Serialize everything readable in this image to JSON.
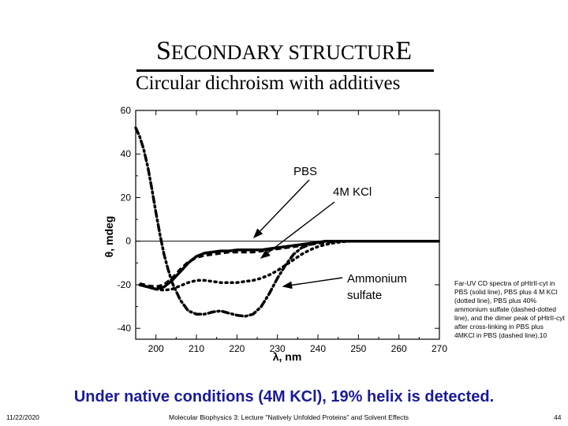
{
  "slide": {
    "title_first": "S",
    "title_middle": "ECONDARY STRUCTUR",
    "title_last": "E",
    "subtitle": "Circular dichroism with additives",
    "caption": "Far-UV CD spectra of pHtrII-cyt in PBS (solid line), PBS plus 4 M KCl (dotted line), PBS plus 40% ammonium sulfate (dashed-dotted line), and the dimer peak of pHtrII-cyt after cross-linking in PBS plus 4MKCl in PBS (dashed line).10",
    "conclusion": "Under native conditions (4M KCl), 19% helix is detected.",
    "footer_date": "11/22/2020",
    "footer_center": "Molecular Biophysics 3: Lecture \"Natively Unfolded Proteins\" and Solvent Effects",
    "footer_page": "44"
  },
  "chart_data": {
    "type": "line",
    "xlabel": "λ, nm",
    "ylabel": "θ, mdeg",
    "xlim": [
      195,
      270
    ],
    "ylim": [
      -45,
      60
    ],
    "xticks": [
      200,
      210,
      220,
      230,
      240,
      250,
      260,
      270
    ],
    "yticks": [
      60,
      40,
      20,
      0,
      -20,
      -40
    ],
    "annotations": [
      {
        "text": "PBS",
        "target_series": "PBS"
      },
      {
        "text": "4M KCl",
        "target_series": "PBS plus 4 M KCl"
      },
      {
        "text": "Ammonium",
        "text2": "sulfate",
        "target_series": "PBS plus 40% ammonium sulfate"
      }
    ],
    "series": [
      {
        "name": "PBS",
        "style": "solid",
        "x": [
          196,
          198,
          200,
          202,
          204,
          206,
          208,
          210,
          212,
          214,
          216,
          218,
          220,
          222,
          224,
          226,
          228,
          230,
          232,
          234,
          236,
          238,
          240,
          242,
          245,
          250,
          260,
          270
        ],
        "y": [
          -20,
          -21,
          -22,
          -21,
          -18,
          -14,
          -10,
          -7,
          -5.5,
          -5,
          -4.5,
          -4.5,
          -4,
          -4,
          -4,
          -4,
          -3.5,
          -3,
          -2.5,
          -2,
          -1.5,
          -1,
          -0.5,
          0,
          0,
          0,
          0,
          0
        ]
      },
      {
        "name": "PBS plus 4 M KCl",
        "style": "dotted",
        "x": [
          196,
          198,
          200,
          202,
          204,
          206,
          208,
          210,
          212,
          214,
          216,
          218,
          220,
          222,
          224,
          226,
          228,
          230,
          232,
          234,
          236,
          238,
          240,
          242,
          244,
          246,
          248,
          250,
          260,
          270
        ],
        "y": [
          -20,
          -21,
          -22,
          -22.5,
          -22,
          -20.5,
          -19,
          -18,
          -18,
          -18.5,
          -19,
          -19,
          -19,
          -18.5,
          -18,
          -17,
          -15.5,
          -13.5,
          -11,
          -8.5,
          -6,
          -4,
          -2.5,
          -1.5,
          -0.8,
          -0.3,
          0,
          0,
          0,
          0
        ]
      },
      {
        "name": "PBS plus 40% ammonium sulfate",
        "style": "dashdot",
        "x": [
          195,
          196,
          197,
          198,
          199,
          200,
          201,
          202,
          203,
          204,
          206,
          208,
          210,
          212,
          214,
          216,
          218,
          220,
          222,
          224,
          226,
          228,
          230,
          232,
          234,
          236,
          238,
          240,
          242,
          245,
          250,
          260,
          270
        ],
        "y": [
          52,
          48,
          42,
          34,
          24,
          13,
          3,
          -6,
          -13,
          -19,
          -27,
          -32,
          -33.5,
          -33.5,
          -32.5,
          -32,
          -33,
          -34,
          -34.5,
          -33.5,
          -30,
          -24,
          -17,
          -11,
          -6,
          -3,
          -1.5,
          -0.5,
          0,
          0,
          0,
          0,
          0
        ]
      },
      {
        "name": "dimer peak after cross-linking",
        "style": "dashed",
        "x": [
          196,
          198,
          200,
          202,
          204,
          206,
          208,
          210,
          212,
          214,
          216,
          218,
          220,
          222,
          224,
          226,
          228,
          230,
          232,
          234,
          236,
          238,
          240,
          242,
          245,
          250,
          260,
          270
        ],
        "y": [
          -19.5,
          -20.5,
          -21,
          -20,
          -17,
          -13,
          -9.5,
          -7.5,
          -6.5,
          -6,
          -5.5,
          -5,
          -5,
          -5,
          -5,
          -4.5,
          -4,
          -3.5,
          -3,
          -2.5,
          -2,
          -1.5,
          -1,
          -0.5,
          0,
          0,
          0,
          0
        ]
      }
    ]
  }
}
